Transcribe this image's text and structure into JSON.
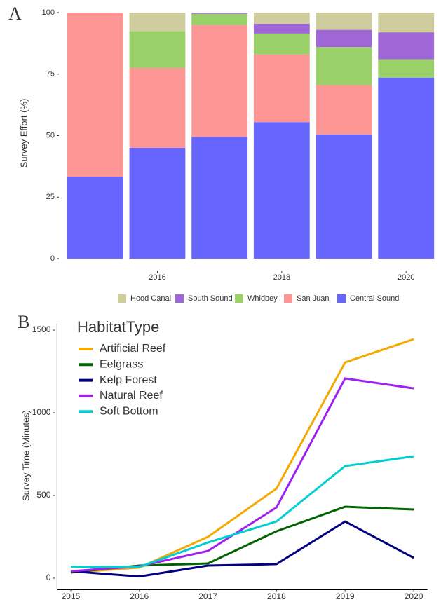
{
  "chart_data": [
    {
      "type": "bar",
      "stacked": true,
      "panel_label": "A",
      "y_label": "Survey Effort (%)",
      "x": [
        2015,
        2016,
        2017,
        2018,
        2019,
        2020
      ],
      "xlim": [
        2014.45,
        2020.55
      ],
      "xticks": [
        2016,
        2018,
        2020
      ],
      "ylim": [
        -5,
        105
      ],
      "yticks": [
        0,
        25,
        50,
        75,
        100
      ],
      "series": [
        {
          "name": "Hood Canal",
          "color": "#cfcc9d",
          "values": [
            0,
            7.5,
            0,
            4.5,
            7,
            8
          ]
        },
        {
          "name": "South Sound",
          "color": "#9f67d6",
          "values": [
            0,
            0,
            0.5,
            4,
            7,
            11
          ]
        },
        {
          "name": "Whidbey",
          "color": "#99d068",
          "values": [
            0,
            15,
            4.5,
            8.5,
            15.5,
            7.5
          ]
        },
        {
          "name": "San Juan",
          "color": "#fe9696",
          "values": [
            66.7,
            32.5,
            45.5,
            27.5,
            20,
            0
          ]
        },
        {
          "name": "Central Sound",
          "color": "#6666ff",
          "values": [
            33.3,
            45,
            49.5,
            55.5,
            50.5,
            73.5
          ]
        }
      ]
    },
    {
      "type": "line",
      "panel_label": "B",
      "y_label": "Survey Time (Minutes)",
      "legend_title": "HabitatType",
      "x": [
        2015,
        2016,
        2017,
        2018,
        2019,
        2020
      ],
      "xlim": [
        2014.8,
        2020.2
      ],
      "xticks": [
        2015,
        2016,
        2017,
        2018,
        2019,
        2020
      ],
      "ylim": [
        -70,
        1540
      ],
      "yticks": [
        0,
        500,
        1000,
        1500
      ],
      "series": [
        {
          "name": "Artificial Reef",
          "color": "#f5a800",
          "values": [
            34,
            64,
            250,
            542,
            1305,
            1445
          ]
        },
        {
          "name": "Eelgrass",
          "color": "#006400",
          "values": [
            35,
            76,
            89,
            284,
            432,
            415
          ]
        },
        {
          "name": "Kelp Forest",
          "color": "#000080",
          "values": [
            42,
            10,
            76,
            85,
            343,
            123
          ]
        },
        {
          "name": "Natural Reef",
          "color": "#a020f0",
          "values": [
            42,
            72,
            165,
            428,
            1208,
            1148
          ]
        },
        {
          "name": "Soft Bottom",
          "color": "#00ced1",
          "values": [
            68,
            68,
            216,
            343,
            678,
            737
          ]
        }
      ]
    }
  ]
}
